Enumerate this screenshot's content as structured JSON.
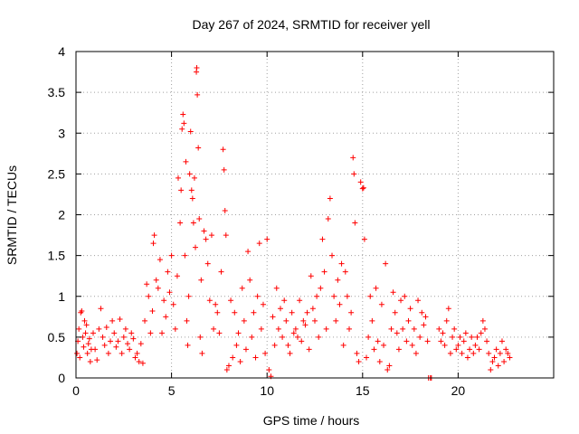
{
  "chart_data": {
    "type": "scatter",
    "title": "Day 267 of 2024, SRMTID for receiver yell",
    "xlabel": "GPS time / hours",
    "ylabel": "SRMTID / TECUs",
    "xlim": [
      0,
      25
    ],
    "ylim": [
      0,
      4
    ],
    "x_ticks": [
      0,
      5,
      10,
      15,
      20
    ],
    "y_ticks": [
      0,
      0.5,
      1,
      1.5,
      2,
      2.5,
      3,
      3.5,
      4
    ],
    "x_tick_labels": [
      "0",
      "5",
      "10",
      "15",
      "20"
    ],
    "y_tick_labels": [
      "0",
      "0.5",
      "1",
      "1.5",
      "2",
      "2.5",
      "3",
      "3.5",
      "4"
    ],
    "grid": true,
    "marker": "+",
    "color": "#ff0000",
    "series": [
      {
        "name": "SRMTID",
        "points": [
          [
            0.05,
            0.3
          ],
          [
            0.1,
            0.45
          ],
          [
            0.15,
            0.6
          ],
          [
            0.2,
            0.25
          ],
          [
            0.25,
            0.8
          ],
          [
            0.3,
            0.82
          ],
          [
            0.35,
            0.5
          ],
          [
            0.4,
            0.38
          ],
          [
            0.45,
            0.7
          ],
          [
            0.5,
            0.55
          ],
          [
            0.55,
            0.65
          ],
          [
            0.6,
            0.3
          ],
          [
            0.65,
            0.42
          ],
          [
            0.7,
            0.48
          ],
          [
            0.75,
            0.2
          ],
          [
            0.8,
            0.35
          ],
          [
            0.9,
            0.55
          ],
          [
            1.0,
            0.35
          ],
          [
            1.1,
            0.22
          ],
          [
            1.2,
            0.6
          ],
          [
            1.3,
            0.85
          ],
          [
            1.4,
            0.5
          ],
          [
            1.5,
            0.4
          ],
          [
            1.6,
            0.62
          ],
          [
            1.7,
            0.3
          ],
          [
            1.8,
            0.45
          ],
          [
            1.9,
            0.7
          ],
          [
            2.0,
            0.55
          ],
          [
            2.1,
            0.38
          ],
          [
            2.2,
            0.45
          ],
          [
            2.3,
            0.72
          ],
          [
            2.4,
            0.3
          ],
          [
            2.5,
            0.5
          ],
          [
            2.6,
            0.6
          ],
          [
            2.7,
            0.42
          ],
          [
            2.8,
            0.35
          ],
          [
            2.9,
            0.55
          ],
          [
            3.0,
            0.48
          ],
          [
            3.1,
            0.25
          ],
          [
            3.2,
            0.3
          ],
          [
            3.3,
            0.2
          ],
          [
            3.4,
            0.42
          ],
          [
            3.5,
            0.18
          ],
          [
            3.6,
            0.7
          ],
          [
            3.7,
            1.15
          ],
          [
            3.8,
            1.0
          ],
          [
            3.9,
            0.55
          ],
          [
            4.0,
            0.82
          ],
          [
            4.05,
            1.65
          ],
          [
            4.1,
            1.75
          ],
          [
            4.2,
            1.2
          ],
          [
            4.3,
            1.1
          ],
          [
            4.4,
            1.45
          ],
          [
            4.5,
            0.55
          ],
          [
            4.6,
            0.95
          ],
          [
            4.7,
            0.75
          ],
          [
            4.8,
            1.3
          ],
          [
            4.9,
            1.05
          ],
          [
            5.0,
            1.5
          ],
          [
            5.1,
            0.9
          ],
          [
            5.2,
            0.6
          ],
          [
            5.3,
            1.25
          ],
          [
            5.35,
            2.45
          ],
          [
            5.45,
            1.9
          ],
          [
            5.5,
            2.3
          ],
          [
            5.55,
            3.05
          ],
          [
            5.6,
            3.23
          ],
          [
            5.65,
            3.12
          ],
          [
            5.7,
            1.5
          ],
          [
            5.75,
            2.65
          ],
          [
            5.8,
            0.7
          ],
          [
            5.85,
            0.4
          ],
          [
            5.9,
            1.0
          ],
          [
            5.95,
            2.5
          ],
          [
            6.0,
            3.02
          ],
          [
            6.05,
            2.3
          ],
          [
            6.1,
            2.2
          ],
          [
            6.15,
            1.9
          ],
          [
            6.2,
            2.45
          ],
          [
            6.25,
            1.6
          ],
          [
            6.3,
            3.75
          ],
          [
            6.32,
            3.8
          ],
          [
            6.35,
            3.47
          ],
          [
            6.4,
            2.82
          ],
          [
            6.45,
            1.95
          ],
          [
            6.5,
            0.5
          ],
          [
            6.55,
            1.2
          ],
          [
            6.6,
            0.3
          ],
          [
            6.7,
            1.8
          ],
          [
            6.8,
            1.7
          ],
          [
            6.9,
            1.4
          ],
          [
            7.0,
            0.95
          ],
          [
            7.1,
            1.75
          ],
          [
            7.2,
            0.6
          ],
          [
            7.3,
            0.9
          ],
          [
            7.4,
            0.8
          ],
          [
            7.5,
            0.55
          ],
          [
            7.6,
            1.3
          ],
          [
            7.7,
            2.8
          ],
          [
            7.75,
            2.55
          ],
          [
            7.8,
            2.05
          ],
          [
            7.85,
            1.75
          ],
          [
            7.9,
            0.1
          ],
          [
            8.0,
            0.15
          ],
          [
            8.1,
            0.95
          ],
          [
            8.2,
            0.25
          ],
          [
            8.3,
            0.8
          ],
          [
            8.4,
            0.4
          ],
          [
            8.5,
            0.55
          ],
          [
            8.6,
            0.2
          ],
          [
            8.7,
            1.1
          ],
          [
            8.8,
            0.7
          ],
          [
            8.9,
            0.35
          ],
          [
            9.0,
            1.55
          ],
          [
            9.1,
            1.2
          ],
          [
            9.2,
            0.5
          ],
          [
            9.3,
            0.8
          ],
          [
            9.4,
            0.25
          ],
          [
            9.5,
            1.0
          ],
          [
            9.6,
            1.65
          ],
          [
            9.7,
            0.6
          ],
          [
            9.8,
            0.9
          ],
          [
            9.9,
            0.3
          ],
          [
            10.0,
            1.7
          ],
          [
            10.1,
            0.1
          ],
          [
            10.2,
            0.02
          ],
          [
            10.3,
            0.75
          ],
          [
            10.4,
            0.4
          ],
          [
            10.5,
            1.1
          ],
          [
            10.6,
            0.6
          ],
          [
            10.7,
            0.85
          ],
          [
            10.8,
            0.5
          ],
          [
            10.9,
            0.95
          ],
          [
            11.0,
            0.7
          ],
          [
            11.1,
            0.4
          ],
          [
            11.2,
            0.3
          ],
          [
            11.3,
            0.8
          ],
          [
            11.4,
            0.55
          ],
          [
            11.5,
            0.6
          ],
          [
            11.6,
            0.5
          ],
          [
            11.7,
            0.95
          ],
          [
            11.8,
            0.45
          ],
          [
            11.9,
            0.7
          ],
          [
            12.0,
            0.65
          ],
          [
            12.1,
            0.8
          ],
          [
            12.2,
            0.35
          ],
          [
            12.3,
            1.25
          ],
          [
            12.4,
            0.85
          ],
          [
            12.5,
            0.7
          ],
          [
            12.6,
            1.0
          ],
          [
            12.7,
            0.5
          ],
          [
            12.8,
            1.1
          ],
          [
            12.9,
            1.7
          ],
          [
            13.0,
            1.3
          ],
          [
            13.1,
            0.6
          ],
          [
            13.2,
            1.95
          ],
          [
            13.3,
            2.2
          ],
          [
            13.4,
            1.5
          ],
          [
            13.5,
            1.0
          ],
          [
            13.6,
            0.7
          ],
          [
            13.7,
            1.2
          ],
          [
            13.8,
            0.9
          ],
          [
            13.9,
            1.4
          ],
          [
            14.0,
            0.4
          ],
          [
            14.1,
            1.3
          ],
          [
            14.2,
            1.0
          ],
          [
            14.3,
            0.6
          ],
          [
            14.4,
            0.8
          ],
          [
            14.5,
            2.7
          ],
          [
            14.55,
            2.5
          ],
          [
            14.6,
            1.9
          ],
          [
            14.7,
            0.3
          ],
          [
            14.8,
            0.2
          ],
          [
            14.9,
            2.4
          ],
          [
            15.0,
            2.32
          ],
          [
            15.05,
            2.33
          ],
          [
            15.1,
            1.7
          ],
          [
            15.2,
            0.25
          ],
          [
            15.3,
            0.5
          ],
          [
            15.4,
            1.0
          ],
          [
            15.5,
            0.7
          ],
          [
            15.6,
            0.35
          ],
          [
            15.7,
            1.1
          ],
          [
            15.8,
            0.45
          ],
          [
            15.9,
            0.2
          ],
          [
            16.0,
            0.9
          ],
          [
            16.1,
            0.4
          ],
          [
            16.2,
            1.4
          ],
          [
            16.3,
            0.1
          ],
          [
            16.4,
            0.15
          ],
          [
            16.5,
            0.6
          ],
          [
            16.6,
            1.05
          ],
          [
            16.7,
            0.8
          ],
          [
            16.8,
            0.55
          ],
          [
            16.9,
            0.35
          ],
          [
            17.0,
            0.95
          ],
          [
            17.1,
            0.6
          ],
          [
            17.2,
            1.0
          ],
          [
            17.3,
            0.45
          ],
          [
            17.4,
            0.7
          ],
          [
            17.5,
            0.85
          ],
          [
            17.6,
            0.4
          ],
          [
            17.7,
            0.6
          ],
          [
            17.8,
            0.3
          ],
          [
            17.9,
            0.95
          ],
          [
            18.0,
            0.5
          ],
          [
            18.1,
            0.8
          ],
          [
            18.2,
            0.65
          ],
          [
            18.3,
            0.75
          ],
          [
            18.4,
            0.45
          ],
          [
            18.45,
            0.0
          ],
          [
            18.55,
            0.0
          ],
          [
            18.6,
            0.0
          ],
          [
            19.0,
            0.6
          ],
          [
            19.1,
            0.45
          ],
          [
            19.2,
            0.55
          ],
          [
            19.3,
            0.4
          ],
          [
            19.4,
            0.7
          ],
          [
            19.5,
            0.85
          ],
          [
            19.6,
            0.3
          ],
          [
            19.7,
            0.5
          ],
          [
            19.8,
            0.6
          ],
          [
            19.9,
            0.35
          ],
          [
            20.0,
            0.4
          ],
          [
            20.1,
            0.5
          ],
          [
            20.2,
            0.3
          ],
          [
            20.3,
            0.45
          ],
          [
            20.4,
            0.55
          ],
          [
            20.5,
            0.25
          ],
          [
            20.6,
            0.35
          ],
          [
            20.7,
            0.5
          ],
          [
            20.8,
            0.3
          ],
          [
            20.9,
            0.4
          ],
          [
            21.0,
            0.5
          ],
          [
            21.1,
            0.35
          ],
          [
            21.2,
            0.55
          ],
          [
            21.3,
            0.7
          ],
          [
            21.4,
            0.6
          ],
          [
            21.5,
            0.45
          ],
          [
            21.6,
            0.3
          ],
          [
            21.7,
            0.1
          ],
          [
            21.8,
            0.2
          ],
          [
            21.9,
            0.25
          ],
          [
            22.0,
            0.35
          ],
          [
            22.1,
            0.15
          ],
          [
            22.2,
            0.3
          ],
          [
            22.3,
            0.45
          ],
          [
            22.4,
            0.2
          ],
          [
            22.5,
            0.35
          ],
          [
            22.6,
            0.3
          ],
          [
            22.7,
            0.25
          ]
        ]
      }
    ]
  }
}
